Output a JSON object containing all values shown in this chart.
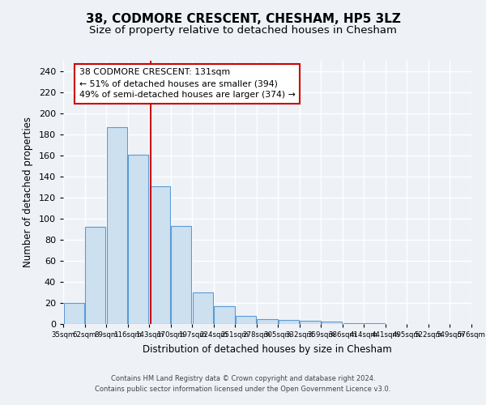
{
  "title1": "38, CODMORE CRESCENT, CHESHAM, HP5 3LZ",
  "title2": "Size of property relative to detached houses in Chesham",
  "xlabel": "Distribution of detached houses by size in Chesham",
  "ylabel": "Number of detached properties",
  "bin_labels": [
    "35sqm",
    "62sqm",
    "89sqm",
    "116sqm",
    "143sqm",
    "170sqm",
    "197sqm",
    "224sqm",
    "251sqm",
    "278sqm",
    "305sqm",
    "332sqm",
    "359sqm",
    "386sqm",
    "414sqm",
    "441sqm",
    "495sqm",
    "522sqm",
    "549sqm",
    "576sqm"
  ],
  "bar_heights": [
    20,
    92,
    187,
    161,
    131,
    93,
    30,
    17,
    8,
    5,
    4,
    3,
    2,
    1,
    1,
    0,
    0,
    0,
    0
  ],
  "bar_color": "#cce0f0",
  "bar_edge_color": "#5b9bd5",
  "property_value": 131,
  "annotation_title": "38 CODMORE CRESCENT: 131sqm",
  "annotation_line1": "← 51% of detached houses are smaller (394)",
  "annotation_line2": "49% of semi-detached houses are larger (374) →",
  "annotation_color": "#cc0000",
  "vline_position": 3.56,
  "ylim": [
    0,
    250
  ],
  "yticks": [
    0,
    20,
    40,
    60,
    80,
    100,
    120,
    140,
    160,
    180,
    200,
    220,
    240
  ],
  "footer1": "Contains HM Land Registry data © Crown copyright and database right 2024.",
  "footer2": "Contains public sector information licensed under the Open Government Licence v3.0.",
  "background_color": "#eef2f7"
}
